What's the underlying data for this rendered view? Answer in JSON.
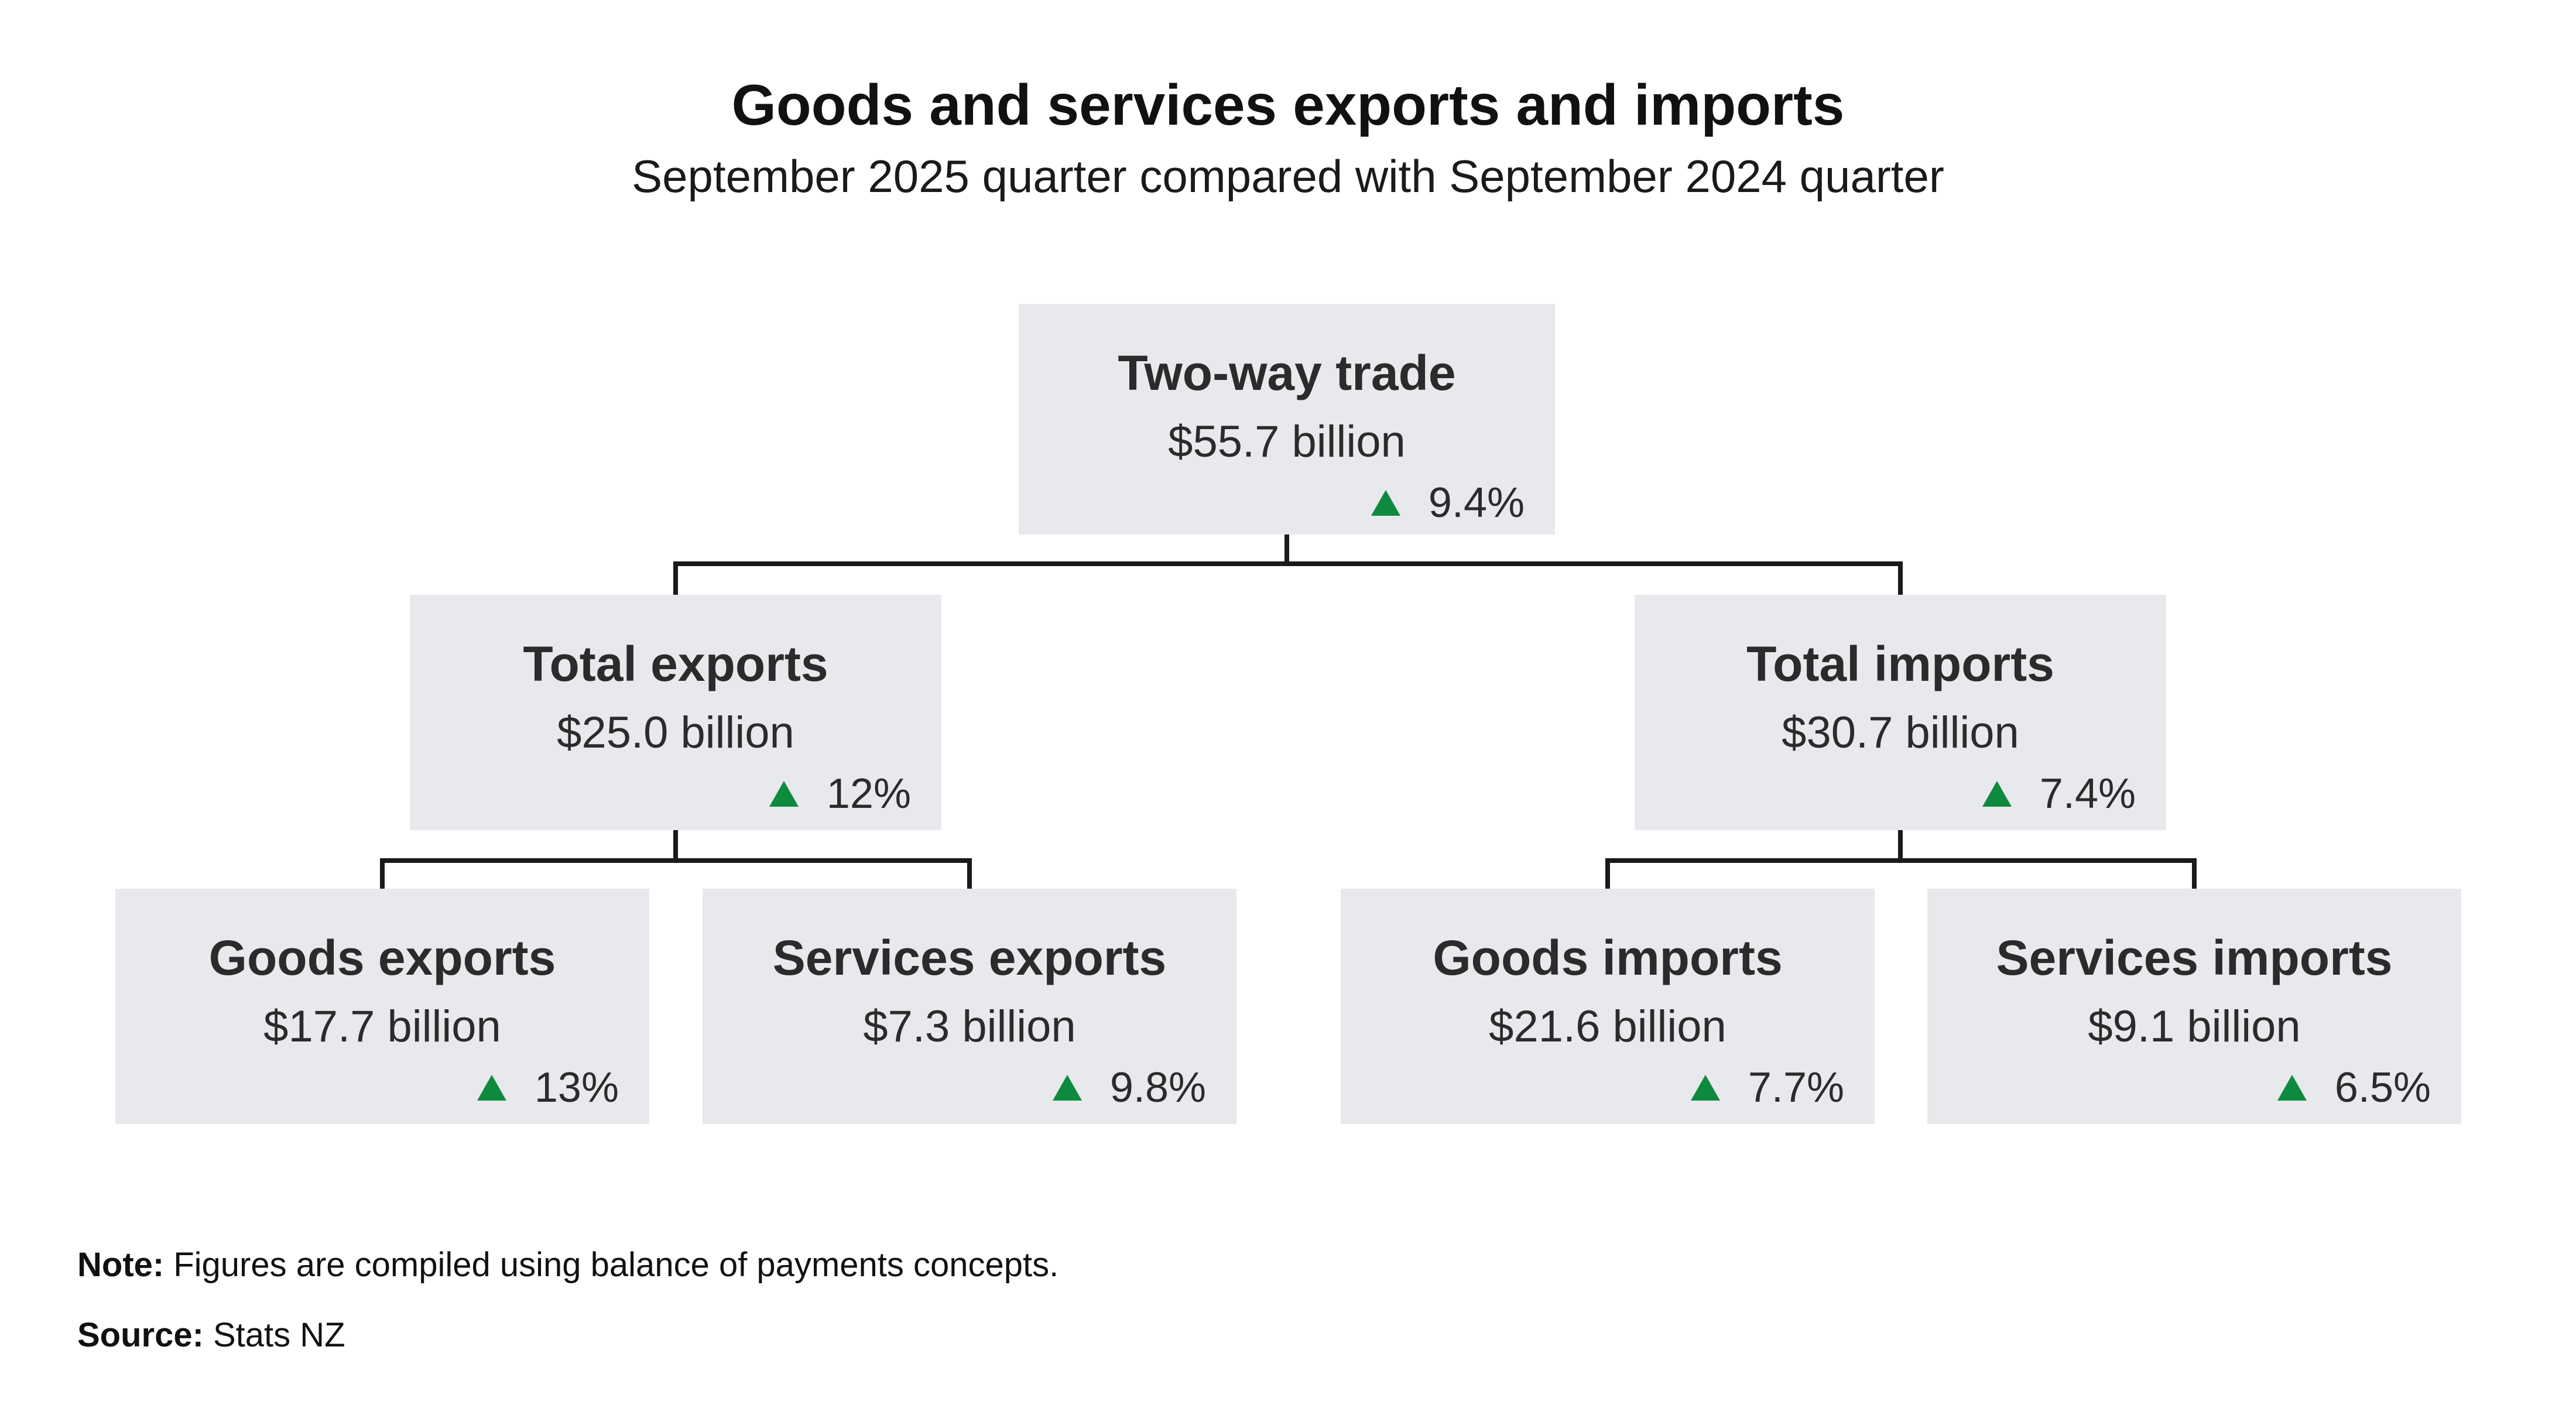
{
  "header": {
    "title": "Goods and services exports and imports",
    "subtitle": "September 2025 quarter compared with September 2024 quarter"
  },
  "nodes": {
    "two_way_trade": {
      "label": "Two-way trade",
      "value": "$55.7 billion",
      "change": "9.4%",
      "direction": "up"
    },
    "total_exports": {
      "label": "Total exports",
      "value": "$25.0 billion",
      "change": "12%",
      "direction": "up"
    },
    "total_imports": {
      "label": "Total imports",
      "value": "$30.7 billion",
      "change": "7.4%",
      "direction": "up"
    },
    "goods_exports": {
      "label": "Goods exports",
      "value": "$17.7 billion",
      "change": "13%",
      "direction": "up"
    },
    "services_exports": {
      "label": "Services exports",
      "value": "$7.3 billion",
      "change": "9.8%",
      "direction": "up"
    },
    "goods_imports": {
      "label": "Goods imports",
      "value": "$21.6 billion",
      "change": "7.7%",
      "direction": "up"
    },
    "services_imports": {
      "label": "Services imports",
      "value": "$9.1 billion",
      "change": "6.5%",
      "direction": "up"
    }
  },
  "footnotes": {
    "note_label": "Note:",
    "note_text": "Figures are compiled using balance of payments concepts.",
    "source_label": "Source:",
    "source_text": "Stats NZ"
  },
  "icons": {
    "increase_marker": "up-triangle"
  },
  "colors": {
    "box_background": "#e8e9ec",
    "text": "#2b2b2b",
    "increase_green": "#0e8a3e",
    "connector_line": "#1a1a1a",
    "page_background": "#ffffff"
  }
}
